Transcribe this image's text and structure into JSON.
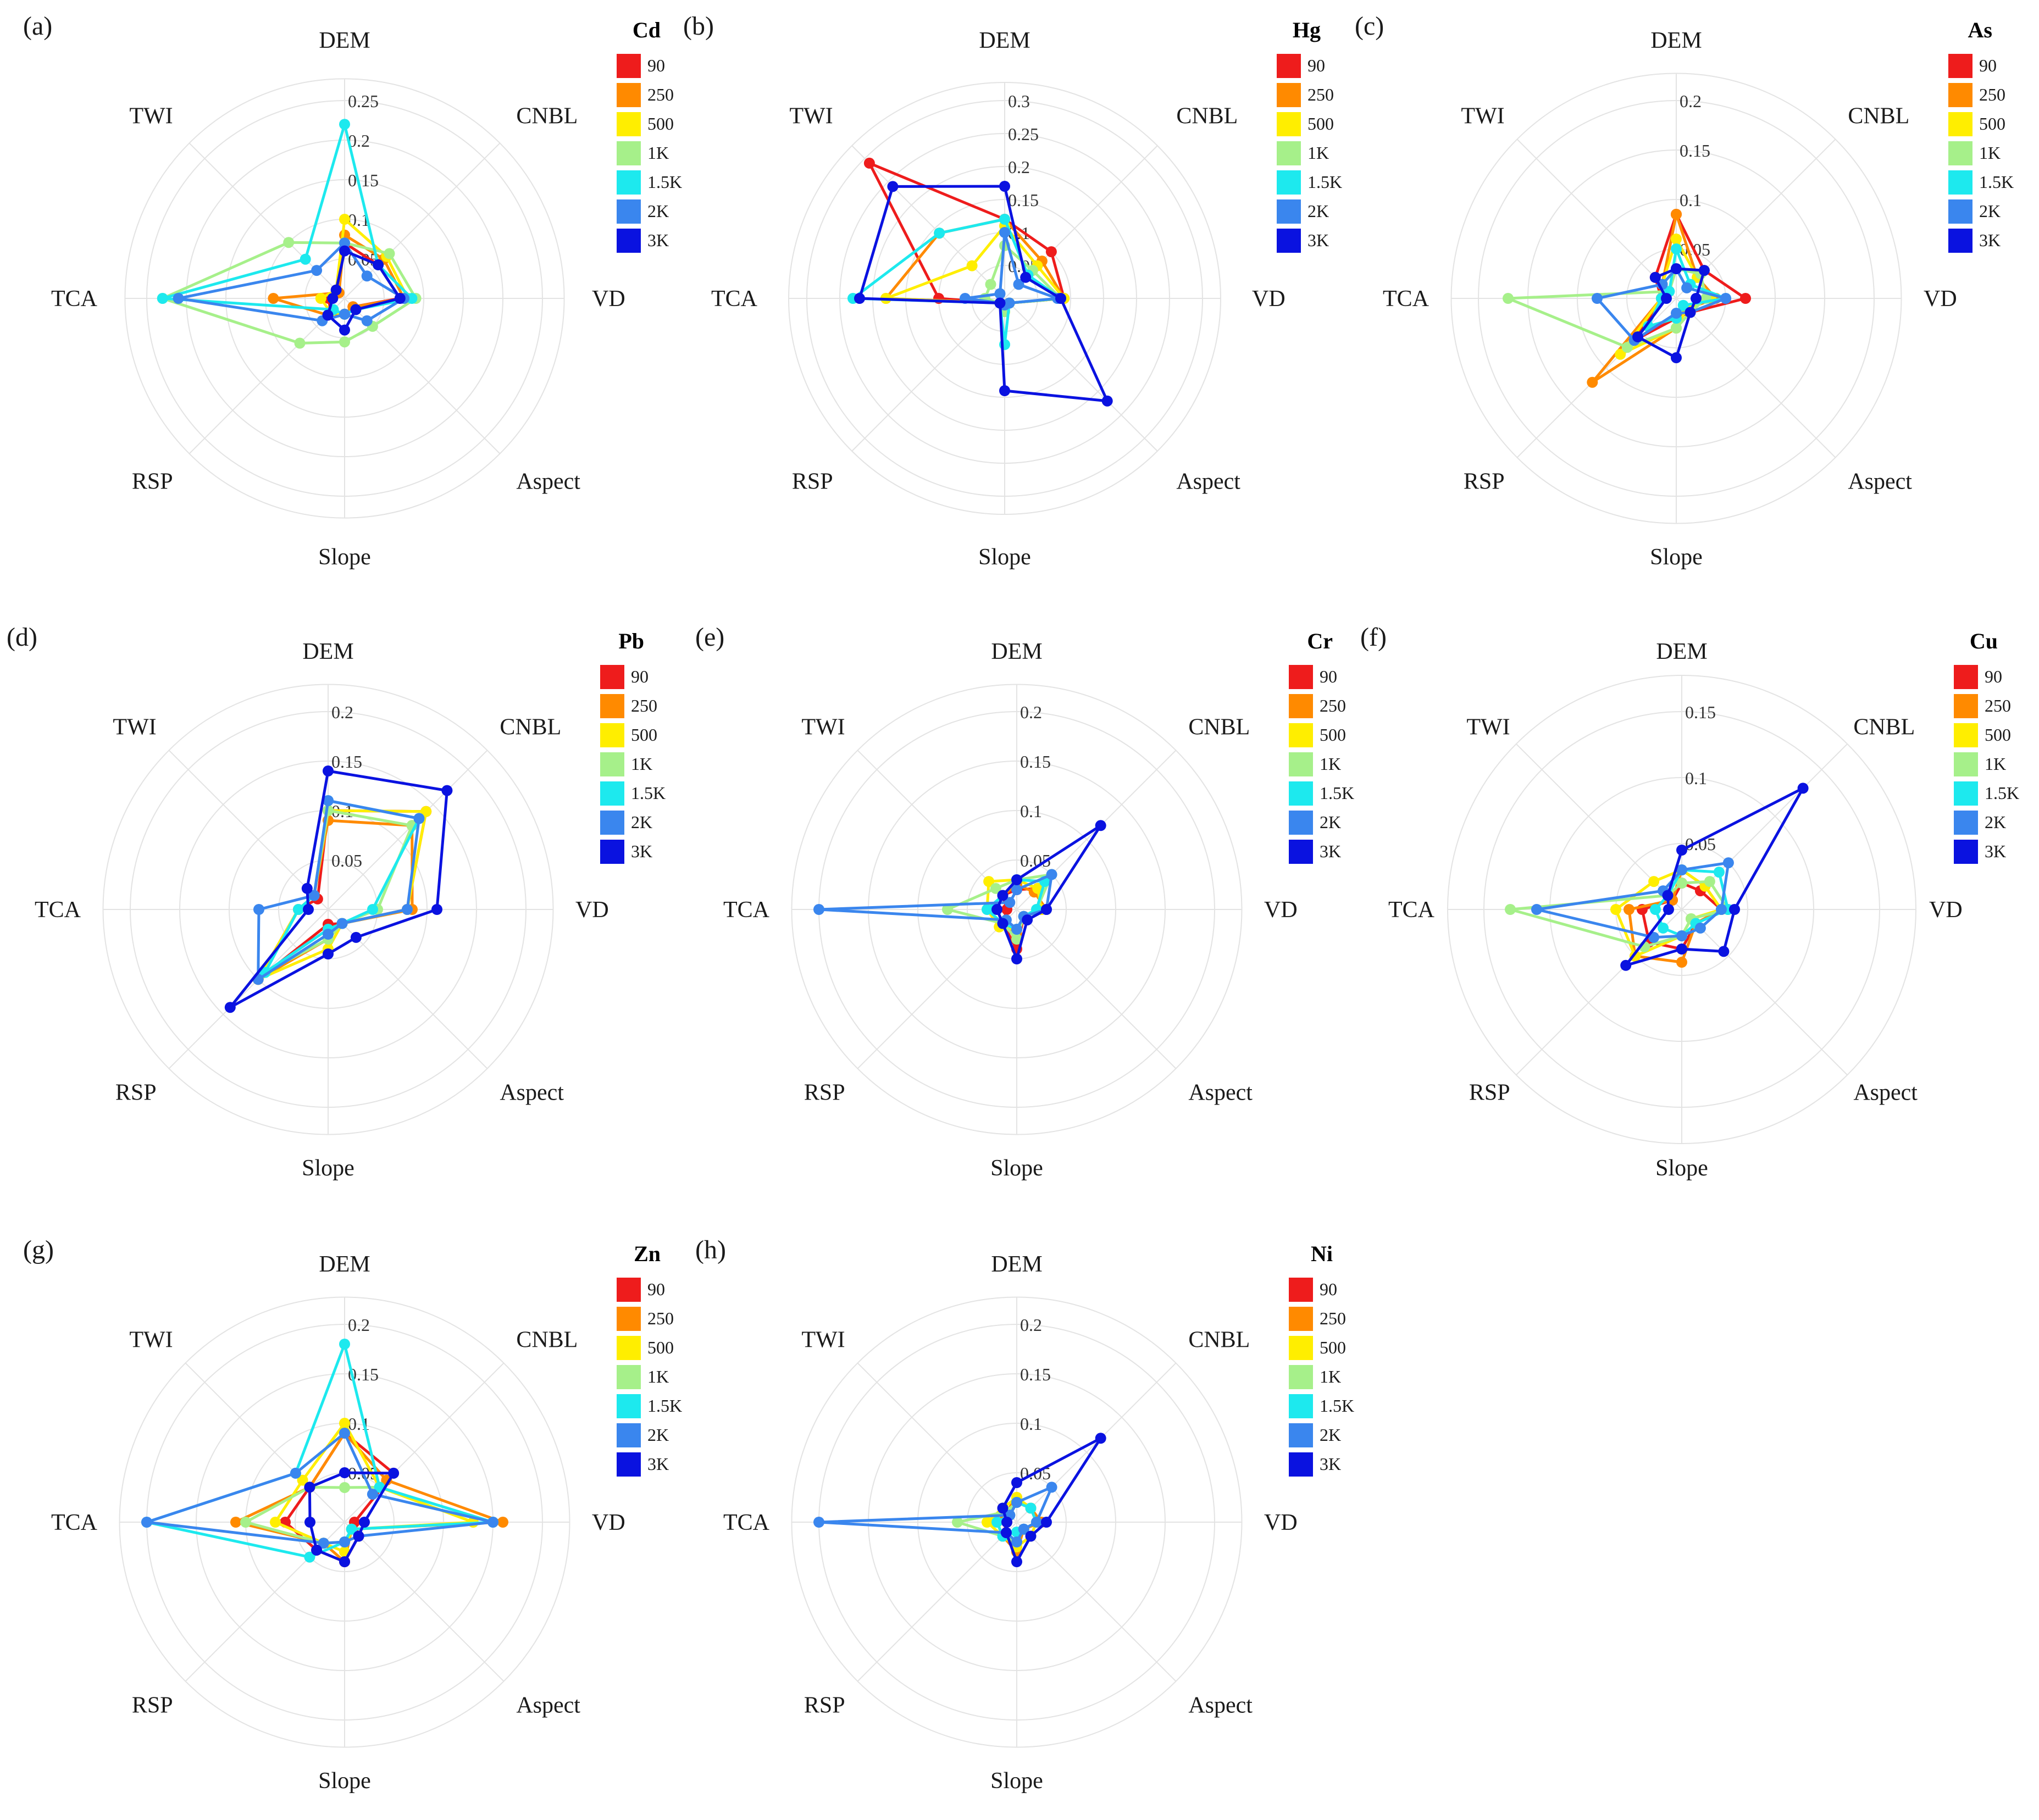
{
  "figure": {
    "title": ""
  },
  "legend": {
    "entries": [
      "90",
      "250",
      "500",
      "1K",
      "1.5K",
      "2K",
      "3K"
    ],
    "colors": [
      "#ee1c1c",
      "#ff8a00",
      "#ffee00",
      "#a6f08a",
      "#1de9ee",
      "#3a86ee",
      "#0a12e0"
    ]
  },
  "chart_data": [
    {
      "panel": "(a)",
      "element": "Cd",
      "type": "radar",
      "axes": [
        "DEM",
        "CNBL",
        "VD",
        "Aspect",
        "Slope",
        "RSP",
        "TCA",
        "TWI"
      ],
      "ticks": [
        "0.05",
        "0.1",
        "0.15",
        "0.2",
        "0.25"
      ],
      "rmax": 0.25,
      "series": [
        {
          "name": "90",
          "values": [
            0.07,
            0.06,
            0.07,
            0.015,
            0.02,
            0.025,
            0.02,
            0.015
          ]
        },
        {
          "name": "250",
          "values": [
            0.08,
            0.07,
            0.075,
            0.015,
            0.02,
            0.03,
            0.09,
            0.01
          ]
        },
        {
          "name": "500",
          "values": [
            0.1,
            0.075,
            0.08,
            0.02,
            0.02,
            0.025,
            0.03,
            0.015
          ]
        },
        {
          "name": "1K",
          "values": [
            0.07,
            0.08,
            0.09,
            0.05,
            0.055,
            0.08,
            0.23,
            0.1
          ]
        },
        {
          "name": "1.5K",
          "values": [
            0.22,
            0.06,
            0.085,
            0.02,
            0.02,
            0.02,
            0.23,
            0.07
          ]
        },
        {
          "name": "2K",
          "values": [
            0.07,
            0.04,
            0.075,
            0.04,
            0.02,
            0.04,
            0.21,
            0.05
          ]
        },
        {
          "name": "3K",
          "values": [
            0.06,
            0.06,
            0.07,
            0.02,
            0.04,
            0.03,
            0.015,
            0.015
          ]
        }
      ]
    },
    {
      "panel": "(b)",
      "element": "Hg",
      "type": "radar",
      "axes": [
        "DEM",
        "CNBL",
        "VD",
        "Aspect",
        "Slope",
        "RSP",
        "TCA",
        "TWI"
      ],
      "ticks": [
        "0.05",
        "0.1",
        "0.15",
        "0.2",
        "0.25",
        "0.3"
      ],
      "rmax": 0.3,
      "series": [
        {
          "name": "90",
          "values": [
            0.12,
            0.1,
            0.09,
            0.01,
            0.01,
            0.01,
            0.1,
            0.29
          ]
        },
        {
          "name": "250",
          "values": [
            0.12,
            0.08,
            0.09,
            0.01,
            0.01,
            0.01,
            0.18,
            0.14
          ]
        },
        {
          "name": "500",
          "values": [
            0.11,
            0.07,
            0.09,
            0.01,
            0.02,
            0.01,
            0.18,
            0.07
          ]
        },
        {
          "name": "1K",
          "values": [
            0.08,
            0.06,
            0.085,
            0.01,
            0.02,
            0.01,
            0.03,
            0.03
          ]
        },
        {
          "name": "1.5K",
          "values": [
            0.12,
            0.05,
            0.085,
            0.01,
            0.07,
            0.01,
            0.23,
            0.14
          ]
        },
        {
          "name": "2K",
          "values": [
            0.1,
            0.03,
            0.08,
            0.01,
            0.01,
            0.01,
            0.06,
            0.01
          ]
        },
        {
          "name": "3K",
          "values": [
            0.17,
            0.045,
            0.085,
            0.22,
            0.14,
            0.01,
            0.22,
            0.24
          ]
        }
      ]
    },
    {
      "panel": "(c)",
      "element": "As",
      "type": "radar",
      "axes": [
        "DEM",
        "CNBL",
        "VD",
        "Aspect",
        "Slope",
        "RSP",
        "TCA",
        "TWI"
      ],
      "ticks": [
        "0.05",
        "0.1",
        "0.15",
        "0.2"
      ],
      "rmax": 0.2,
      "series": [
        {
          "name": "90",
          "values": [
            0.085,
            0.04,
            0.07,
            0.02,
            0.02,
            0.06,
            0.015,
            0.03
          ]
        },
        {
          "name": "250",
          "values": [
            0.085,
            0.03,
            0.04,
            0.015,
            0.03,
            0.12,
            0.015,
            0.02
          ]
        },
        {
          "name": "500",
          "values": [
            0.06,
            0.03,
            0.035,
            0.015,
            0.03,
            0.08,
            0.015,
            0.02
          ]
        },
        {
          "name": "1K",
          "values": [
            0.03,
            0.035,
            0.03,
            0.02,
            0.03,
            0.07,
            0.17,
            0.01
          ]
        },
        {
          "name": "1.5K",
          "values": [
            0.05,
            0.02,
            0.05,
            0.01,
            0.02,
            0.04,
            0.015,
            0.01
          ]
        },
        {
          "name": "2K",
          "values": [
            0.03,
            0.015,
            0.05,
            0.02,
            0.015,
            0.06,
            0.08,
            0.02
          ]
        },
        {
          "name": "3K",
          "values": [
            0.03,
            0.04,
            0.02,
            0.02,
            0.06,
            0.055,
            0.01,
            0.03
          ]
        }
      ]
    },
    {
      "panel": "(d)",
      "element": "Pb",
      "type": "radar",
      "axes": [
        "DEM",
        "CNBL",
        "VD",
        "Aspect",
        "Slope",
        "RSP",
        "TCA",
        "TWI"
      ],
      "ticks": [
        "0.05",
        "0.1",
        "0.15",
        "0.2"
      ],
      "rmax": 0.2,
      "series": [
        {
          "name": "90",
          "values": [
            0.1,
            0.14,
            0.08,
            0.02,
            0.015,
            0.1,
            0.03,
            0.015
          ]
        },
        {
          "name": "250",
          "values": [
            0.09,
            0.12,
            0.085,
            0.02,
            0.03,
            0.1,
            0.03,
            0.02
          ]
        },
        {
          "name": "500",
          "values": [
            0.1,
            0.14,
            0.08,
            0.02,
            0.04,
            0.1,
            0.03,
            0.02
          ]
        },
        {
          "name": "1K",
          "values": [
            0.1,
            0.12,
            0.05,
            0.02,
            0.03,
            0.09,
            0.03,
            0.02
          ]
        },
        {
          "name": "1.5K",
          "values": [
            0.11,
            0.13,
            0.045,
            0.02,
            0.02,
            0.09,
            0.03,
            0.02
          ]
        },
        {
          "name": "2K",
          "values": [
            0.11,
            0.13,
            0.08,
            0.02,
            0.025,
            0.1,
            0.07,
            0.02
          ]
        },
        {
          "name": "3K",
          "values": [
            0.14,
            0.17,
            0.11,
            0.04,
            0.045,
            0.14,
            0.02,
            0.03
          ]
        }
      ]
    },
    {
      "panel": "(e)",
      "element": "Cr",
      "type": "radar",
      "axes": [
        "DEM",
        "CNBL",
        "VD",
        "Aspect",
        "Slope",
        "RSP",
        "TCA",
        "TWI"
      ],
      "ticks": [
        "0.05",
        "0.1",
        "0.15",
        "0.2"
      ],
      "rmax": 0.2,
      "series": [
        {
          "name": "90",
          "values": [
            0.02,
            0.03,
            0.025,
            0.01,
            0.04,
            0.02,
            0.01,
            0.02
          ]
        },
        {
          "name": "250",
          "values": [
            0.025,
            0.025,
            0.03,
            0.01,
            0.025,
            0.02,
            0.02,
            0.02
          ]
        },
        {
          "name": "500",
          "values": [
            0.03,
            0.03,
            0.025,
            0.01,
            0.02,
            0.025,
            0.03,
            0.04
          ]
        },
        {
          "name": "1K",
          "values": [
            0.03,
            0.05,
            0.02,
            0.01,
            0.03,
            0.02,
            0.07,
            0.03
          ]
        },
        {
          "name": "1.5K",
          "values": [
            0.03,
            0.04,
            0.02,
            0.01,
            0.02,
            0.02,
            0.03,
            0.02
          ]
        },
        {
          "name": "2K",
          "values": [
            0.02,
            0.05,
            0.03,
            0.01,
            0.02,
            0.015,
            0.2,
            0.01
          ]
        },
        {
          "name": "3K",
          "values": [
            0.03,
            0.12,
            0.03,
            0.015,
            0.05,
            0.02,
            0.02,
            0.02
          ]
        }
      ]
    },
    {
      "panel": "(f)",
      "element": "Cu",
      "type": "radar",
      "axes": [
        "DEM",
        "CNBL",
        "VD",
        "Aspect",
        "Slope",
        "RSP",
        "TCA",
        "TWI"
      ],
      "ticks": [
        "0.05",
        "0.1",
        "0.15"
      ],
      "rmax": 0.15,
      "series": [
        {
          "name": "90",
          "values": [
            0.02,
            0.02,
            0.03,
            0.015,
            0.03,
            0.035,
            0.03,
            0.01
          ]
        },
        {
          "name": "250",
          "values": [
            0.03,
            0.025,
            0.03,
            0.015,
            0.04,
            0.05,
            0.04,
            0.01
          ]
        },
        {
          "name": "500",
          "values": [
            0.03,
            0.025,
            0.03,
            0.01,
            0.02,
            0.05,
            0.05,
            0.03
          ]
        },
        {
          "name": "1K",
          "values": [
            0.02,
            0.03,
            0.035,
            0.01,
            0.02,
            0.04,
            0.13,
            0.015
          ]
        },
        {
          "name": "1.5K",
          "values": [
            0.03,
            0.04,
            0.035,
            0.015,
            0.02,
            0.02,
            0.02,
            0.015
          ]
        },
        {
          "name": "2K",
          "values": [
            0.03,
            0.05,
            0.03,
            0.02,
            0.02,
            0.03,
            0.11,
            0.02
          ]
        },
        {
          "name": "3K",
          "values": [
            0.045,
            0.13,
            0.04,
            0.045,
            0.03,
            0.06,
            0.01,
            0.015
          ]
        }
      ]
    },
    {
      "panel": "(g)",
      "element": "Zn",
      "type": "radar",
      "axes": [
        "DEM",
        "CNBL",
        "VD",
        "Aspect",
        "Slope",
        "RSP",
        "TCA",
        "TWI"
      ],
      "ticks": [
        "0.05",
        "0.1",
        "0.15",
        "0.2"
      ],
      "rmax": 0.2,
      "series": [
        {
          "name": "90",
          "values": [
            0.09,
            0.07,
            0.01,
            0.02,
            0.04,
            0.04,
            0.06,
            0.05
          ]
        },
        {
          "name": "250",
          "values": [
            0.09,
            0.06,
            0.16,
            0.01,
            0.04,
            0.03,
            0.11,
            0.05
          ]
        },
        {
          "name": "500",
          "values": [
            0.1,
            0.05,
            0.13,
            0.01,
            0.03,
            0.03,
            0.07,
            0.06
          ]
        },
        {
          "name": "1K",
          "values": [
            0.035,
            0.05,
            0.15,
            0.01,
            0.02,
            0.03,
            0.1,
            0.05
          ]
        },
        {
          "name": "1.5K",
          "values": [
            0.18,
            0.05,
            0.15,
            0.01,
            0.02,
            0.05,
            0.2,
            0.07
          ]
        },
        {
          "name": "2K",
          "values": [
            0.09,
            0.04,
            0.15,
            0.02,
            0.02,
            0.03,
            0.2,
            0.07
          ]
        },
        {
          "name": "3K",
          "values": [
            0.05,
            0.07,
            0.02,
            0.02,
            0.04,
            0.04,
            0.035,
            0.05
          ]
        }
      ]
    },
    {
      "panel": "(h)",
      "element": "Ni",
      "type": "radar",
      "axes": [
        "DEM",
        "CNBL",
        "VD",
        "Aspect",
        "Slope",
        "RSP",
        "TCA",
        "TWI"
      ],
      "ticks": [
        "0.05",
        "0.1",
        "0.15",
        "0.2"
      ],
      "rmax": 0.2,
      "series": [
        {
          "name": "90",
          "values": [
            0.02,
            0.02,
            0.02,
            0.01,
            0.02,
            0.02,
            0.01,
            0.01
          ]
        },
        {
          "name": "250",
          "values": [
            0.025,
            0.02,
            0.025,
            0.01,
            0.03,
            0.02,
            0.02,
            0.015
          ]
        },
        {
          "name": "500",
          "values": [
            0.025,
            0.02,
            0.02,
            0.02,
            0.025,
            0.02,
            0.03,
            0.02
          ]
        },
        {
          "name": "1K",
          "values": [
            0.02,
            0.02,
            0.02,
            0.01,
            0.02,
            0.02,
            0.06,
            0.015
          ]
        },
        {
          "name": "1.5K",
          "values": [
            0.02,
            0.02,
            0.02,
            0.01,
            0.01,
            0.02,
            0.02,
            0.01
          ]
        },
        {
          "name": "2K",
          "values": [
            0.02,
            0.05,
            0.02,
            0.01,
            0.02,
            0.015,
            0.2,
            0.01
          ]
        },
        {
          "name": "3K",
          "values": [
            0.04,
            0.12,
            0.03,
            0.02,
            0.04,
            0.015,
            0.01,
            0.02
          ]
        }
      ]
    }
  ]
}
